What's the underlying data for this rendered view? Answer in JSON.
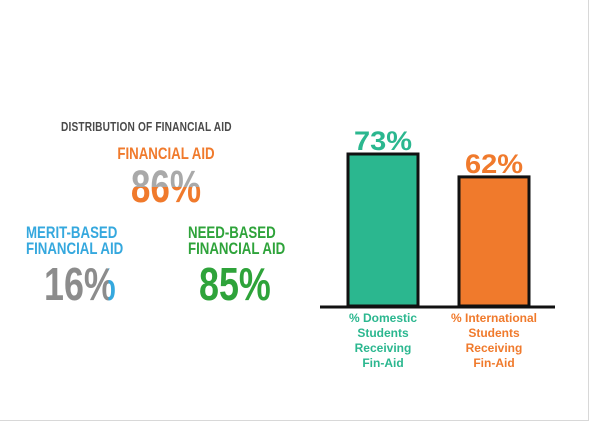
{
  "infographic": {
    "title": "DISTRIBUTION OF FINANCIAL AID",
    "financial_aid": {
      "label": "FINANCIAL AID",
      "value": "86%"
    },
    "merit_based": {
      "label_line1": "MERIT-BASED",
      "label_line2": "FINANCIAL AID",
      "value": "16%"
    },
    "need_based": {
      "label_line1": "NEED-BASED",
      "label_line2": "FINANCIAL AID",
      "value": "85%"
    }
  },
  "colors": {
    "domestic": "#2bb78f",
    "international": "#f07a2c",
    "financial_aid": "#f07a2c",
    "merit": "#35a8de",
    "need": "#2ea33a",
    "gray": "#a9a9a9"
  },
  "chart_data": {
    "type": "bar",
    "categories": [
      "% Domestic Students Receiving Fin-Aid",
      "% International Students Receiving Fin-Aid"
    ],
    "category_lines": [
      [
        "% Domestic",
        "Students",
        "Receiving",
        "Fin-Aid"
      ],
      [
        "% International",
        "Students",
        "Receiving",
        "Fin-Aid"
      ]
    ],
    "values": [
      73,
      62
    ],
    "data_labels": [
      "73%",
      "62%"
    ],
    "colors": [
      "#2bb78f",
      "#f07a2c"
    ],
    "ylim": [
      0,
      100
    ],
    "grid": false,
    "title": "",
    "xlabel": "",
    "ylabel": ""
  }
}
